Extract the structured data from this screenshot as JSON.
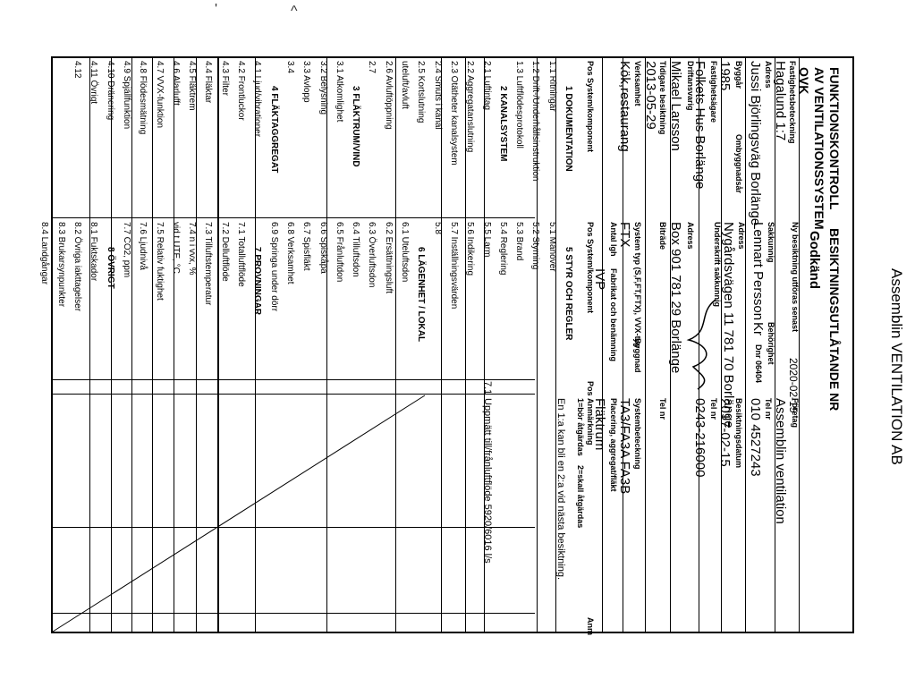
{
  "brand": "Assemblin VENTILATION AB",
  "scan_marks": [
    "'",
    "^"
  ],
  "header": {
    "left_title_1": "FUNKTIONSKONTROLL",
    "left_title_2": "AV VENTILATIONSSYSTEM -",
    "left_title_3": "OVK",
    "right_title": "BESIKTNINGSUTLÅTANDE NR",
    "status": "Godkänd"
  },
  "fields": {
    "fastighetsbeteckning_label": "Fastighetsbeteckning",
    "fastighetsbeteckning": "Hagalund 1:7",
    "adress_label": "Adress",
    "adress": "Jussi Björlingsväg Borlänge",
    "byggar_label": "Byggår",
    "byggar": "1985",
    "ombyggnadsar_label": "Ombyggnadsår",
    "fastighetsagare_label": "Fastighetsägare",
    "fastighetsagare": "Folkets Hus Borlänge",
    "driftansvarig_label": "Driftansvarig",
    "driftansvarig": "Mikael Larsson",
    "tidigare_besiktning_label": "Tidigare besiktning",
    "tidigare_besiktning": "2013-05-29",
    "verksamhet_label": "Verksamhet",
    "verksamhet": "Kök,restaurang",
    "ny_besiktning_label": "Ny besiktning utföras senast",
    "ny_besiktning": "2020-02-15",
    "sakkunnig_label": "Sakkunnig",
    "sakkunnig": "Lennart Persson",
    "behorighet_label": "Behörighet",
    "behorighet": "Kr",
    "dnr": "Dnr 06404",
    "foretag_label": "Företag",
    "foretag": "Assemblin ventilation",
    "adress2_label": "Adress",
    "adress2": "Nygårdsvägen 11 781 70 Borlänge",
    "telnr_label": "Tel nr",
    "telnr": "010 4527243",
    "underskrift_label": "Underskrift sakkunnig",
    "besiktningsdatum_label": "Besiktningsdatum",
    "besiktningsdatum": "2017-02-15",
    "agare_adress_label": "Adress",
    "agare_adress": "Box 901 781 29 Borlänge",
    "agare_tel_label": "Tel nr",
    "agare_tel": "0243-216000",
    "bitrade_label": "Biträde",
    "bitrade_tel_label": "Tel nr",
    "systemtyp_label": "System typ (S,F,FT,FTX), VVX-typ",
    "systemtyp": "FTX",
    "byggnad_label": "Byggnad",
    "systembeteckning_label": "Systembeteckning",
    "systembeteckning": "TA3/FA3A FA3B",
    "antal_lgh_label": "Antal lgh",
    "fabrikat_label": "Fabrikat och benämning",
    "fabrikat": "IVP",
    "placering_label": "Placering, aggregat/fläkt",
    "placering": "Fläktrum"
  },
  "table_headers": {
    "pos_system_1": "Pos System/komponent",
    "pos_system_2": "Pos System/komponent",
    "pos": "Pos",
    "anmarkning": "Anmärkning",
    "atgardas_1": "1=bör åtgärdas",
    "atgardas_2": "2=skall åtgärdas",
    "anm": "Anm"
  },
  "col1": [
    {
      "t": "1 DOKUMENTATION",
      "s": true
    },
    {
      "t": "1.1 Ritningar"
    },
    {
      "t": "1.2 Drift-/Underhållsinstruktion"
    },
    {
      "t": "1.3 Luftflödesprotokoll"
    },
    {
      "t": "2 KANALSYSTEM",
      "s": true
    },
    {
      "t": "2.1 Luftintag"
    },
    {
      "t": "2.2 Aggregatanslutning"
    },
    {
      "t": "2.3 Otätheter kanalsystem"
    },
    {
      "t": "2.4 Smuts i kanal"
    },
    {
      "t": "2.5 Kortslutning"
    },
    {
      "t": "uteluft/avluft"
    },
    {
      "t": "2.6 Avluftöppning"
    },
    {
      "t": "2.7"
    },
    {
      "t": "3 FLÄKTRUM/VIND",
      "s": true
    },
    {
      "t": "3.1 Atkomlighet"
    },
    {
      "t": "3.2 Belysning"
    },
    {
      "t": "3.3 Avlopp"
    },
    {
      "t": "3.4"
    },
    {
      "t": "4 FLÄKTAGGREGAT",
      "s": true
    },
    {
      "t": "4.1 Ljud/vibrationer"
    },
    {
      "t": "4.2 Frontluckor"
    },
    {
      "t": "4.3 Filter"
    },
    {
      "t": "4.4 Fläktar"
    },
    {
      "t": "4.5 Fläktrem"
    },
    {
      "t": "4.6 Alarlufft"
    },
    {
      "t": "4.7 VVX-funktion"
    },
    {
      "t": "4.8 Flödesmätning"
    },
    {
      "t": "4.9 Spjällfunktion"
    },
    {
      "t": "4.10 Dränering"
    },
    {
      "t": "4.11 Övrigt"
    },
    {
      "t": "4.12"
    }
  ],
  "col2": [
    {
      "t": "5 STYR OCH REGLER",
      "s": true
    },
    {
      "t": "5.1 Manöver"
    },
    {
      "t": "5.2 Styrning"
    },
    {
      "t": "5.3 Brand"
    },
    {
      "t": "5.4 Reglering"
    },
    {
      "t": "5.5 Larm"
    },
    {
      "t": "5.6 Indikering"
    },
    {
      "t": "5.7 Inställningsvärden"
    },
    {
      "t": "5.8"
    },
    {
      "t": "6 LÄGENHET / LOKAL",
      "s": true
    },
    {
      "t": "6.1 Uteluftsdon"
    },
    {
      "t": "6.2 Ersättningsluft"
    },
    {
      "t": "6.3 Överluftsdon"
    },
    {
      "t": "6.4 Tilluftsdon"
    },
    {
      "t": "6.5 Frånluftdon"
    },
    {
      "t": "6.6 Spiskåpa"
    },
    {
      "t": "6.7 Spisfläkt"
    },
    {
      "t": "6.8 Verksamhet"
    },
    {
      "t": "6.9 Springa under dörr"
    },
    {
      "t": "7 PROVNINGAR",
      "s": true
    },
    {
      "t": "7.1 Totalluftflöde"
    },
    {
      "t": "7.2 Delluftflöde"
    },
    {
      "t": "7.3 Tilluftstemperatur"
    },
    {
      "t": "7.4 n i vvx, %"
    },
    {
      "t": "vid t UTE, °C"
    },
    {
      "t": "7.5 Relativ fuktighet"
    },
    {
      "t": "7.6 Ljudnivå"
    },
    {
      "t": "7.7 CO2, ppm"
    },
    {
      "t": "8 ÖVRIGT",
      "s": true
    },
    {
      "t": "8.1 Fuktskador"
    },
    {
      "t": "8.2 Övriga iakttagelser"
    },
    {
      "t": "8.3 Brukarsynpunkter"
    },
    {
      "t": "8.4 Landgångar"
    }
  ],
  "remarks": {
    "r1": "En 1:a kan bli en 2:a vid nästa besiktning.",
    "r2_pos": "7.1",
    "r2": "Uppmätt till/frånluftflöde 5920/6016 l/s"
  }
}
